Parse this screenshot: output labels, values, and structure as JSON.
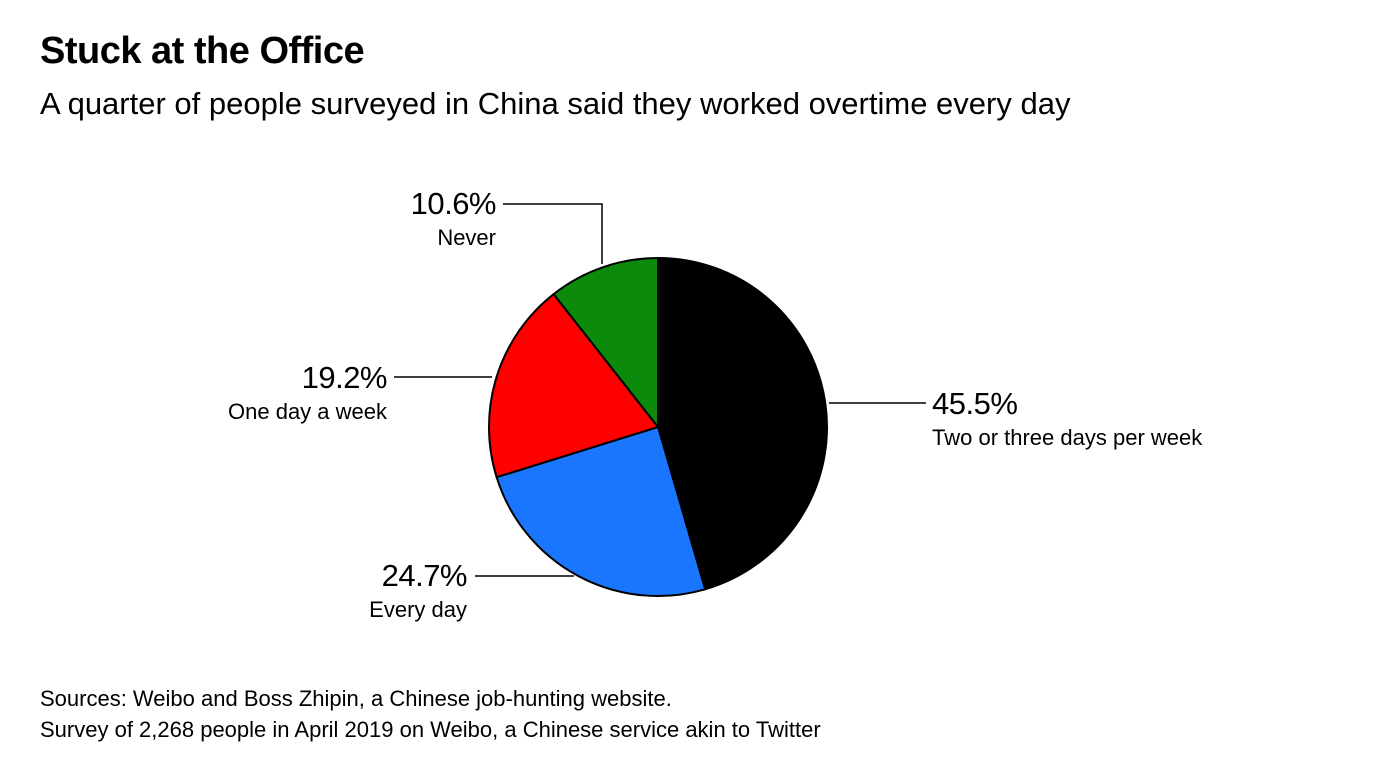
{
  "header": {
    "title": "Stuck at the Office",
    "subtitle": "A quarter of people surveyed in China said they worked overtime every day"
  },
  "chart_data": {
    "type": "pie",
    "title": "Stuck at the Office",
    "subtitle": "A quarter of people surveyed in China said they worked overtime every day",
    "start": "12 o'clock, clockwise",
    "slices": [
      {
        "label": "Two or three days per week",
        "value": 45.5,
        "value_label": "45.5%",
        "color": "#000000"
      },
      {
        "label": "Every day",
        "value": 24.7,
        "value_label": "24.7%",
        "color": "#1a75ff"
      },
      {
        "label": "One day a week",
        "value": 19.2,
        "value_label": "19.2%",
        "color": "#ff0000"
      },
      {
        "label": "Never",
        "value": 10.6,
        "value_label": "10.6%",
        "color": "#0b8a0b"
      }
    ]
  },
  "footer": {
    "source_line1": "Sources: Weibo and Boss Zhipin, a Chinese job-hunting website.",
    "source_line2": "Survey of 2,268 people in April 2019 on Weibo, a Chinese service akin to Twitter"
  }
}
